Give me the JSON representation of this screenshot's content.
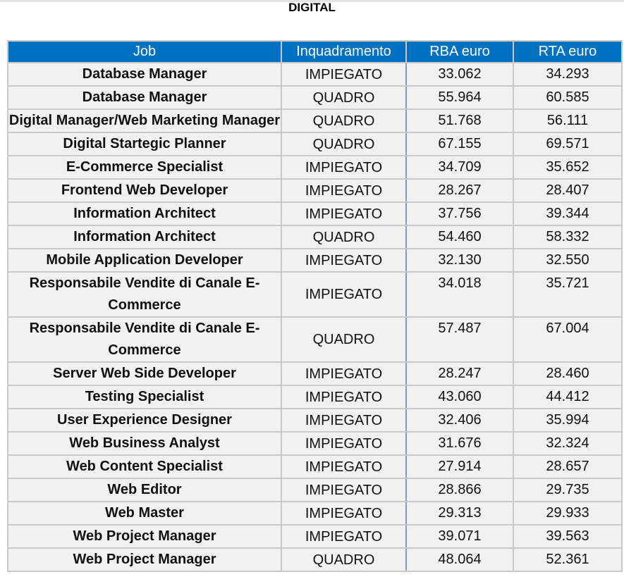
{
  "title": "DIGITAL",
  "columns": [
    "Job",
    "Inquadramento",
    "RBA euro",
    "RTA euro"
  ],
  "rows": [
    [
      "Database Manager",
      "IMPIEGATO",
      "33.062",
      "34.293"
    ],
    [
      "Database Manager",
      "QUADRO",
      "55.964",
      "60.585"
    ],
    [
      "Digital Manager/Web Marketing Manager",
      "QUADRO",
      "51.768",
      "56.111"
    ],
    [
      "Digital Startegic Planner",
      "QUADRO",
      "67.155",
      "69.571"
    ],
    [
      "E-Commerce Specialist",
      "IMPIEGATO",
      "34.709",
      "35.652"
    ],
    [
      "Frontend Web Developer",
      "IMPIEGATO",
      "28.267",
      "28.407"
    ],
    [
      "Information Architect",
      "IMPIEGATO",
      "37.756",
      "39.344"
    ],
    [
      "Information Architect",
      "QUADRO",
      "54.460",
      "58.332"
    ],
    [
      "Mobile Application Developer",
      "IMPIEGATO",
      "32.130",
      "32.550"
    ],
    [
      "Responsabile Vendite di Canale E-Commerce",
      "IMPIEGATO",
      "34.018",
      "35.721"
    ],
    [
      "Responsabile Vendite di Canale E-Commerce",
      "QUADRO",
      "57.487",
      "67.004"
    ],
    [
      "Server Web Side Developer",
      "IMPIEGATO",
      "28.247",
      "28.460"
    ],
    [
      "Testing Specialist",
      "IMPIEGATO",
      "43.060",
      "44.412"
    ],
    [
      "User Experience Designer",
      "IMPIEGATO",
      "32.406",
      "35.994"
    ],
    [
      "Web Business Analyst",
      "IMPIEGATO",
      "31.676",
      "32.324"
    ],
    [
      "Web Content Specialist",
      "IMPIEGATO",
      "27.914",
      "28.657"
    ],
    [
      "Web Editor",
      "IMPIEGATO",
      "28.866",
      "29.735"
    ],
    [
      "Web Master",
      "IMPIEGATO",
      "29.313",
      "29.933"
    ],
    [
      "Web Project Manager",
      "IMPIEGATO",
      "39.071",
      "39.563"
    ],
    [
      "Web Project Manager",
      "QUADRO",
      "48.064",
      "52.361"
    ]
  ]
}
